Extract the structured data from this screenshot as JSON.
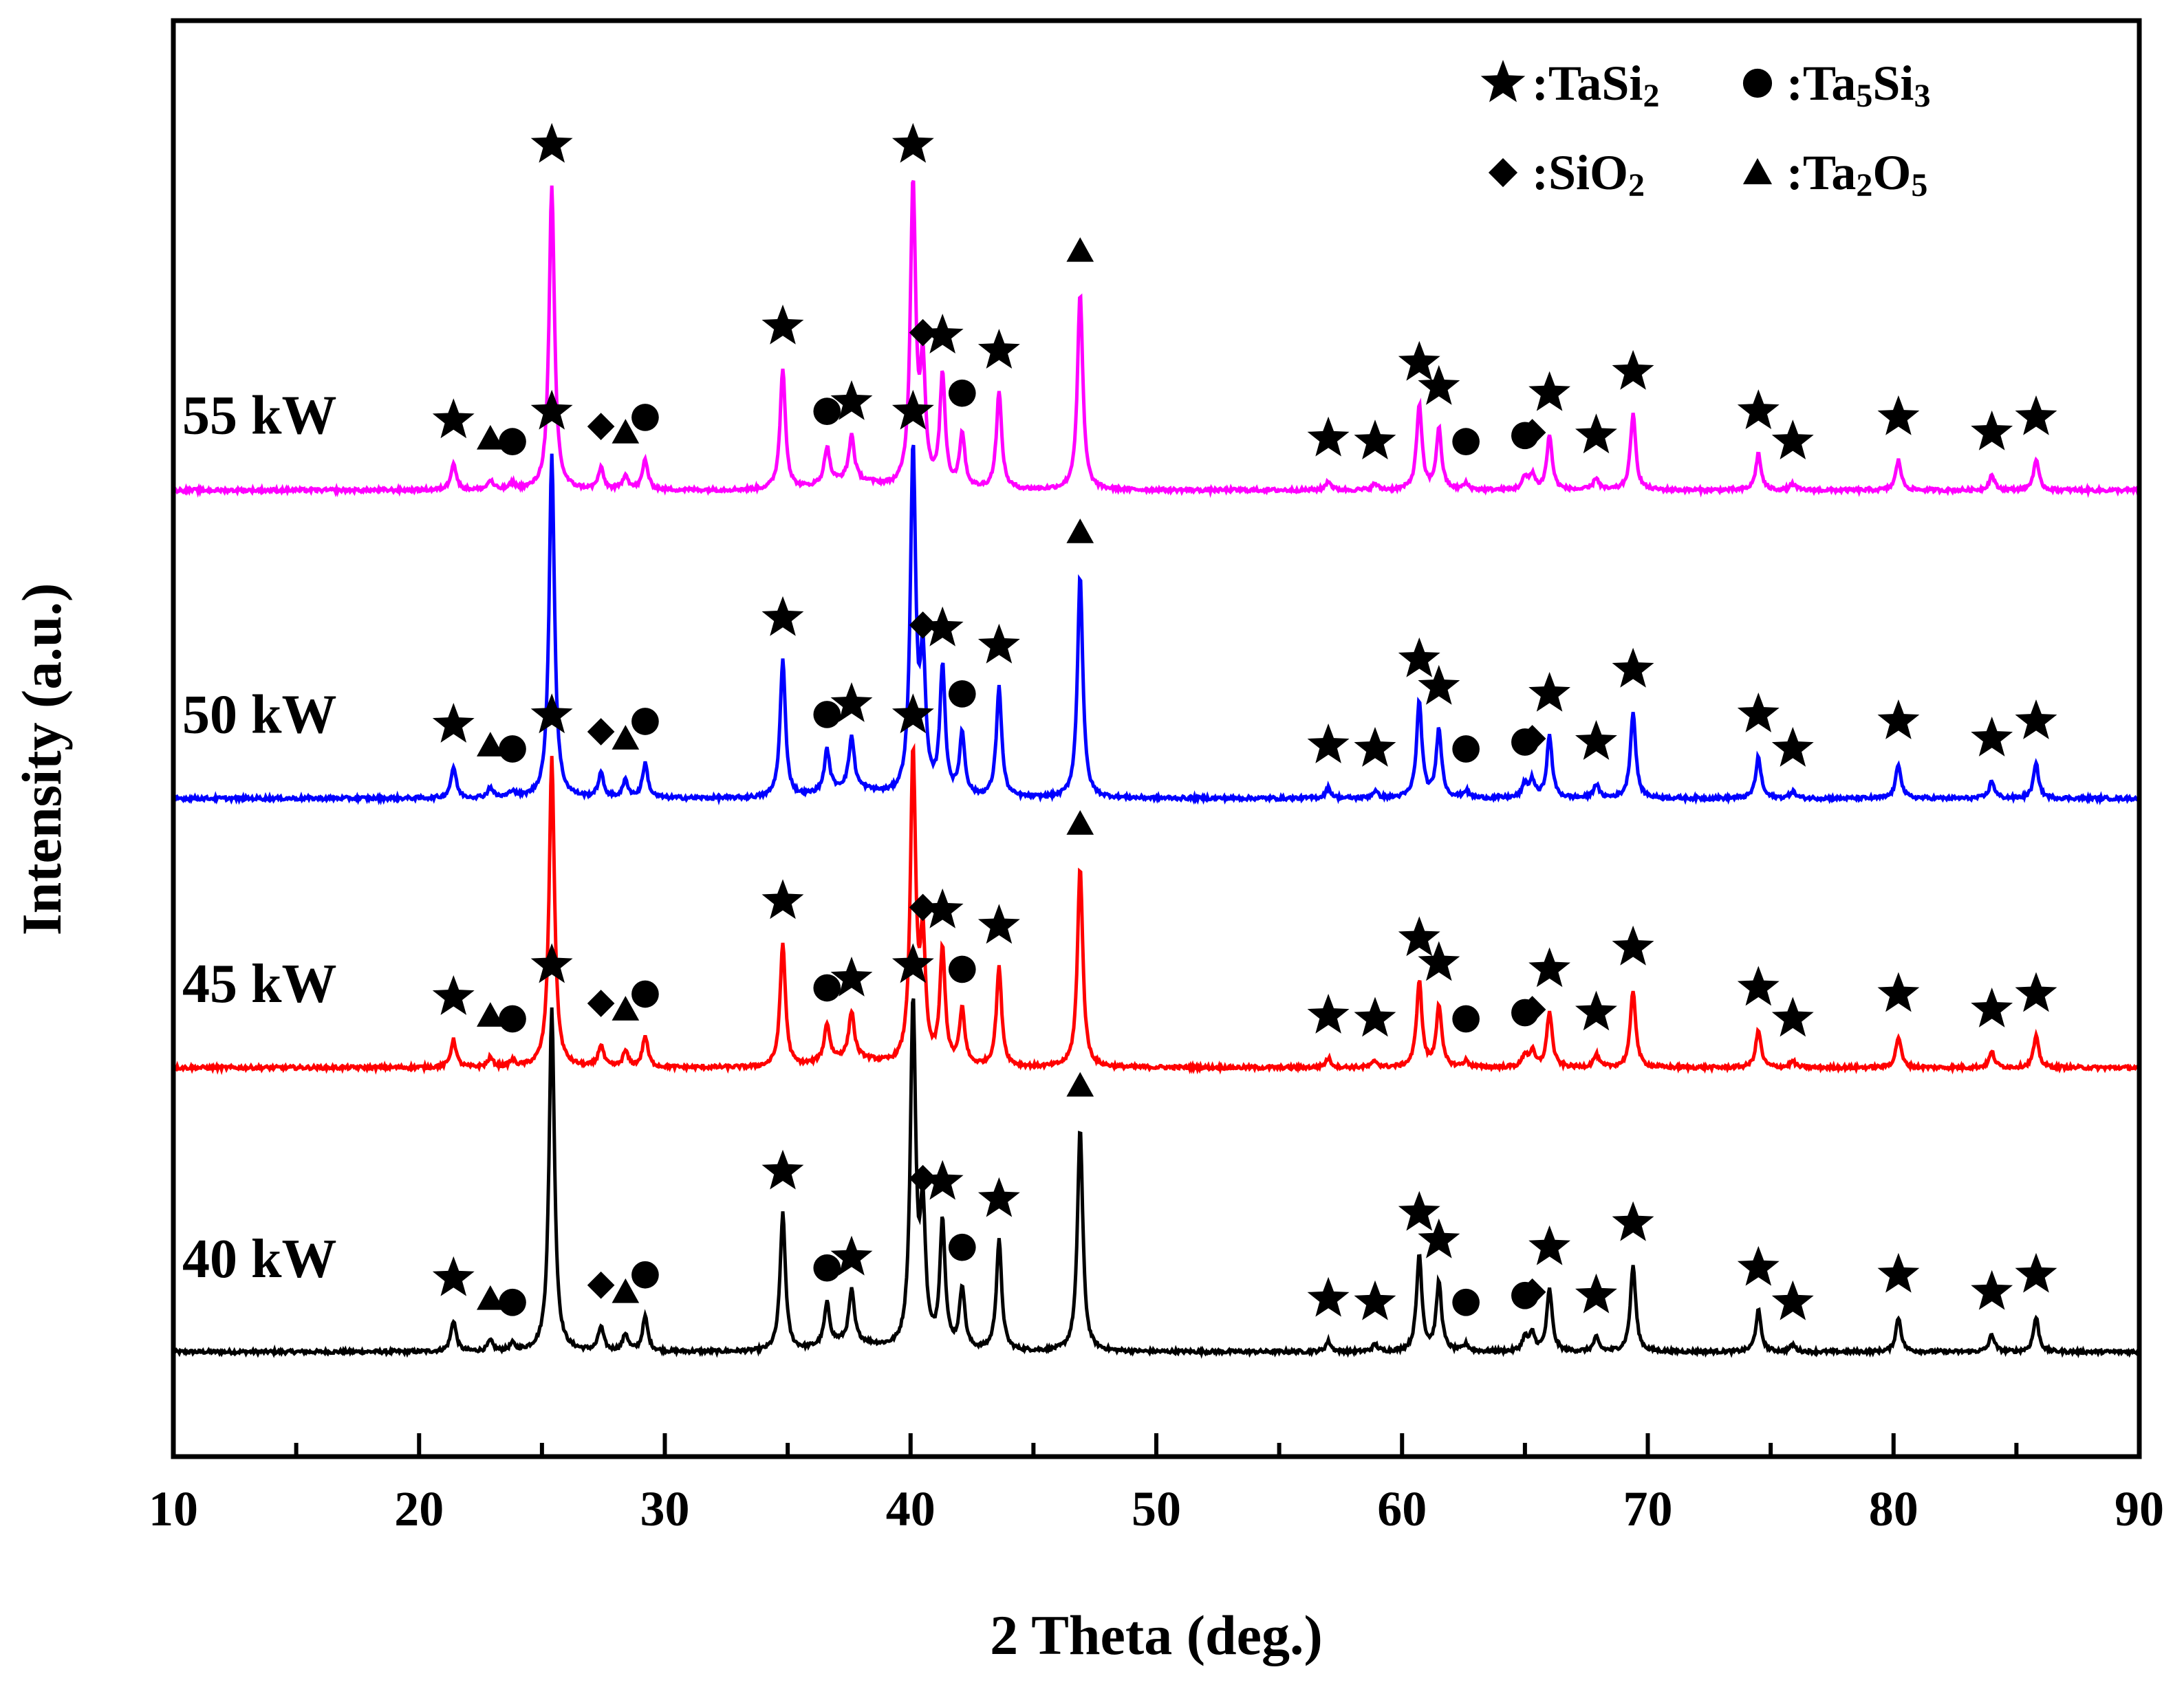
{
  "chart_data": {
    "type": "line",
    "title": "",
    "xlabel": "2 Theta (deg.)",
    "ylabel": "Intensity (a.u.)",
    "xlim": [
      10,
      90
    ],
    "ylim": [
      0,
      4.8
    ],
    "x_ticks": [
      10,
      20,
      30,
      40,
      50,
      60,
      70,
      80,
      90
    ],
    "x_tick_labels": [
      "10",
      "20",
      "30",
      "40",
      "50",
      "60",
      "70",
      "80",
      "90"
    ],
    "y_ticks_shown": false,
    "colors": {
      "40 kW": "#000000",
      "45 kW": "#ff0000",
      "50 kW": "#0000ff",
      "55 kW": "#ff00ff",
      "axis": "#000000"
    },
    "legend": {
      "position": "top-right",
      "entries": [
        {
          "marker": "star",
          "symbol": "★",
          "text": ":TaSi",
          "sub": "2"
        },
        {
          "marker": "circle",
          "symbol": "●",
          "text": ":Ta",
          "sub": "5",
          "text2": "Si",
          "sub2": "3"
        },
        {
          "marker": "diamond",
          "symbol": "◆",
          "text": ":SiO",
          "sub": "2"
        },
        {
          "marker": "triangle",
          "symbol": "▲",
          "text": ":Ta",
          "sub": "2",
          "text2": "O",
          "sub2": "5"
        }
      ]
    },
    "peaks": [
      {
        "two_theta": 21.4,
        "phase": "TaSi2",
        "rel_intensity": 0.09
      },
      {
        "two_theta": 22.9,
        "phase": "Ta2O5",
        "rel_intensity": 0.03
      },
      {
        "two_theta": 23.8,
        "phase": "Ta5Si3",
        "rel_intensity": 0.02
      },
      {
        "two_theta": 25.4,
        "phase": "TaSi2",
        "rel_intensity": 1.0
      },
      {
        "two_theta": 27.4,
        "phase": "SiO2",
        "rel_intensity": 0.07
      },
      {
        "two_theta": 28.4,
        "phase": "Ta2O5",
        "rel_intensity": 0.05
      },
      {
        "two_theta": 29.2,
        "phase": "Ta5Si3",
        "rel_intensity": 0.1
      },
      {
        "two_theta": 34.8,
        "phase": "TaSi2",
        "rel_intensity": 0.4
      },
      {
        "two_theta": 36.6,
        "phase": "Ta5Si3",
        "rel_intensity": 0.12
      },
      {
        "two_theta": 37.6,
        "phase": "TaSi2",
        "rel_intensity": 0.15
      },
      {
        "two_theta": 40.1,
        "phase": "TaSi2",
        "rel_intensity": 1.0
      },
      {
        "two_theta": 40.5,
        "phase": "SiO2",
        "rel_intensity": 0.38
      },
      {
        "two_theta": 41.3,
        "phase": "TaSi2",
        "rel_intensity": 0.37
      },
      {
        "two_theta": 42.1,
        "phase": "Ta5Si3",
        "rel_intensity": 0.18
      },
      {
        "two_theta": 43.6,
        "phase": "TaSi2",
        "rel_intensity": 0.32
      },
      {
        "two_theta": 46.9,
        "phase": "Ta2O5",
        "rel_intensity": 0.65
      },
      {
        "two_theta": 57.0,
        "phase": "TaSi2",
        "rel_intensity": 0.03
      },
      {
        "two_theta": 58.9,
        "phase": "TaSi2",
        "rel_intensity": 0.02
      },
      {
        "two_theta": 60.7,
        "phase": "TaSi2",
        "rel_intensity": 0.28
      },
      {
        "two_theta": 61.5,
        "phase": "TaSi2",
        "rel_intensity": 0.2
      },
      {
        "two_theta": 62.6,
        "phase": "Ta5Si3",
        "rel_intensity": 0.02
      },
      {
        "two_theta": 65.0,
        "phase": "Ta5Si3",
        "rel_intensity": 0.04
      },
      {
        "two_theta": 65.3,
        "phase": "SiO2",
        "rel_intensity": 0.05
      },
      {
        "two_theta": 66.0,
        "phase": "TaSi2",
        "rel_intensity": 0.18
      },
      {
        "two_theta": 67.9,
        "phase": "TaSi2",
        "rel_intensity": 0.04
      },
      {
        "two_theta": 69.4,
        "phase": "TaSi2",
        "rel_intensity": 0.25
      },
      {
        "two_theta": 74.5,
        "phase": "TaSi2",
        "rel_intensity": 0.12
      },
      {
        "two_theta": 75.9,
        "phase": "TaSi2",
        "rel_intensity": 0.02
      },
      {
        "two_theta": 80.2,
        "phase": "TaSi2",
        "rel_intensity": 0.1
      },
      {
        "two_theta": 84.0,
        "phase": "TaSi2",
        "rel_intensity": 0.05
      },
      {
        "two_theta": 85.8,
        "phase": "TaSi2",
        "rel_intensity": 0.1
      }
    ],
    "series": [
      {
        "name": "40 kW",
        "label": "40 kW",
        "offset": 0.35,
        "peak_scale": 1.0,
        "label_y": 0.6
      },
      {
        "name": "45 kW",
        "label": "45 kW",
        "offset": 1.3,
        "peak_scale": 0.9,
        "label_y": 1.52
      },
      {
        "name": "50 kW",
        "label": "50 kW",
        "offset": 2.2,
        "peak_scale": 1.0,
        "label_y": 2.42
      },
      {
        "name": "55 kW",
        "label": "55 kW",
        "offset": 3.23,
        "peak_scale": 0.88,
        "label_y": 3.42
      }
    ]
  }
}
